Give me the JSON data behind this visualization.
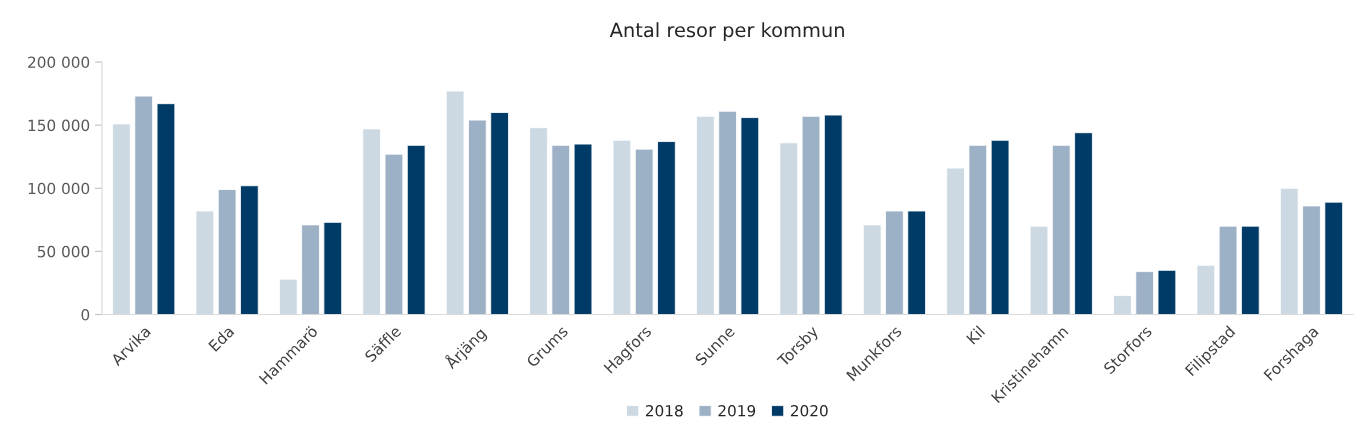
{
  "chart_data": {
    "type": "bar",
    "title": "Antal resor per kommun",
    "categories": [
      "Arvika",
      "Eda",
      "Hammarö",
      "Säffle",
      "Årjäng",
      "Grums",
      "Hagfors",
      "Sunne",
      "Torsby",
      "Munkfors",
      "Kil",
      "Kristinehamn",
      "Storfors",
      "Filipstad",
      "Forshaga"
    ],
    "series": [
      {
        "name": "2018",
        "color": "#cdd9e2",
        "values": [
          151000,
          82000,
          28000,
          147000,
          177000,
          148000,
          138000,
          157000,
          136000,
          71000,
          116000,
          70000,
          15000,
          39000,
          100000
        ]
      },
      {
        "name": "2019",
        "color": "#9cb1c5",
        "values": [
          173000,
          99000,
          71000,
          127000,
          154000,
          134000,
          131000,
          161000,
          157000,
          82000,
          134000,
          134000,
          34000,
          70000,
          86000
        ]
      },
      {
        "name": "2020",
        "color": "#003a66",
        "values": [
          167000,
          102000,
          73000,
          134000,
          160000,
          135000,
          137000,
          156000,
          158000,
          82000,
          138000,
          144000,
          35000,
          70000,
          89000
        ]
      }
    ],
    "ylim": [
      0,
      200000
    ],
    "yticks": [
      {
        "value": 0,
        "label": "0"
      },
      {
        "value": 50000,
        "label": "50 000"
      },
      {
        "value": 100000,
        "label": "100 000"
      },
      {
        "value": 150000,
        "label": "150 000"
      },
      {
        "value": 200000,
        "label": "200 000"
      }
    ],
    "grid": false,
    "legend": "bottom"
  }
}
